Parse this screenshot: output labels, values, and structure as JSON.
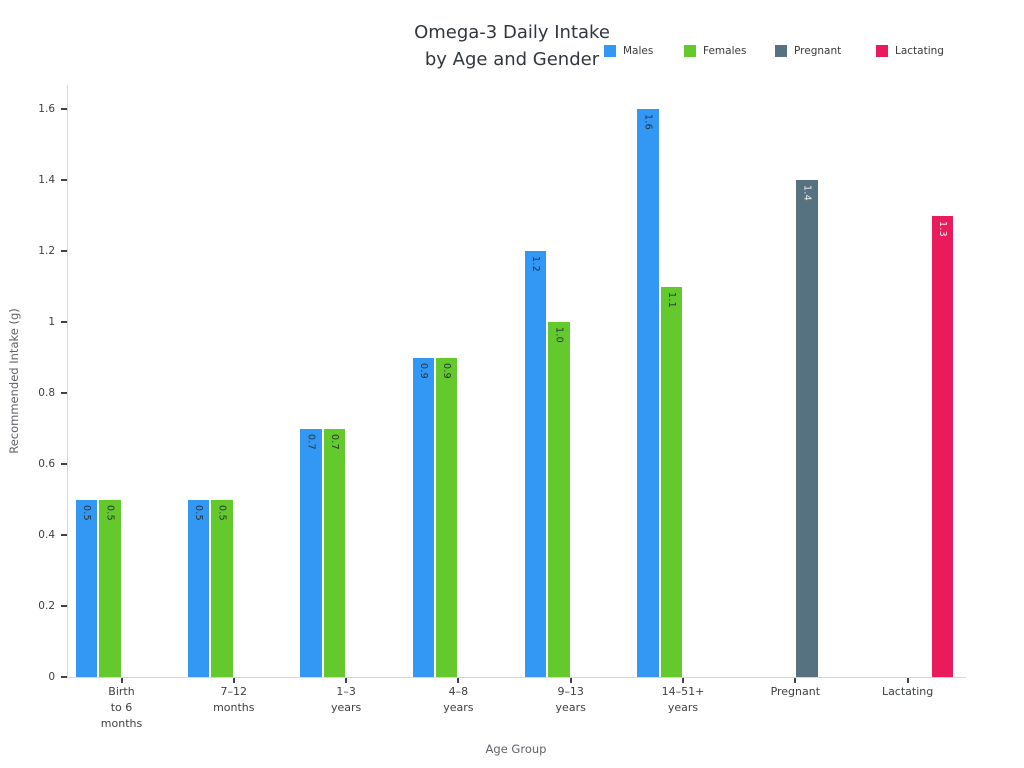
{
  "page": {
    "background": "#ffffff"
  },
  "chart_data": {
    "type": "bar",
    "title_lines": [
      "Omega-3 Daily Intake",
      "by Age and Gender"
    ],
    "xlabel": "Age Group",
    "ylabel": "Recommended Intake (g)",
    "ylim": [
      0,
      1.67
    ],
    "grid": false,
    "legend_position": "top-right",
    "bar_value_labels": "rotated-inside-top, one decimal",
    "yticks": [
      {
        "value": 0,
        "label": "0"
      },
      {
        "value": 0.2,
        "label": "0.2"
      },
      {
        "value": 0.4,
        "label": "0.4"
      },
      {
        "value": 0.6,
        "label": "0.6"
      },
      {
        "value": 0.8,
        "label": "0.8"
      },
      {
        "value": 1,
        "label": "1"
      },
      {
        "value": 1.2,
        "label": "1.2"
      },
      {
        "value": 1.4,
        "label": "1.4"
      },
      {
        "value": 1.6,
        "label": "1.6"
      }
    ],
    "categories": [
      {
        "label_lines": [
          "Birth",
          "to 6",
          "months"
        ]
      },
      {
        "label_lines": [
          "7–12",
          "months"
        ]
      },
      {
        "label_lines": [
          "1–3",
          "years"
        ]
      },
      {
        "label_lines": [
          "4–8",
          "years"
        ]
      },
      {
        "label_lines": [
          "9–13",
          "years"
        ]
      },
      {
        "label_lines": [
          "14–51+",
          "years"
        ]
      },
      {
        "label_lines": [
          "Pregnant"
        ]
      },
      {
        "label_lines": [
          "Lactating"
        ]
      }
    ],
    "series": [
      {
        "name": "Males",
        "color": "#3398f3",
        "value_label_color": "#263238",
        "values": [
          0.5,
          0.5,
          0.7,
          0.9,
          1.2,
          1.6,
          null,
          null
        ]
      },
      {
        "name": "Females",
        "color": "#64c92d",
        "value_label_color": "#263238",
        "values": [
          0.5,
          0.5,
          0.7,
          0.9,
          1.0,
          1.1,
          null,
          null
        ]
      },
      {
        "name": "Pregnant",
        "color": "#567180",
        "value_label_color": "#eef2f4",
        "values": [
          null,
          null,
          null,
          null,
          null,
          null,
          1.4,
          null
        ]
      },
      {
        "name": "Lactating",
        "color": "#ea1b5d",
        "value_label_color": "#fdf3f7",
        "values": [
          null,
          null,
          null,
          null,
          null,
          null,
          null,
          1.3
        ]
      }
    ]
  }
}
